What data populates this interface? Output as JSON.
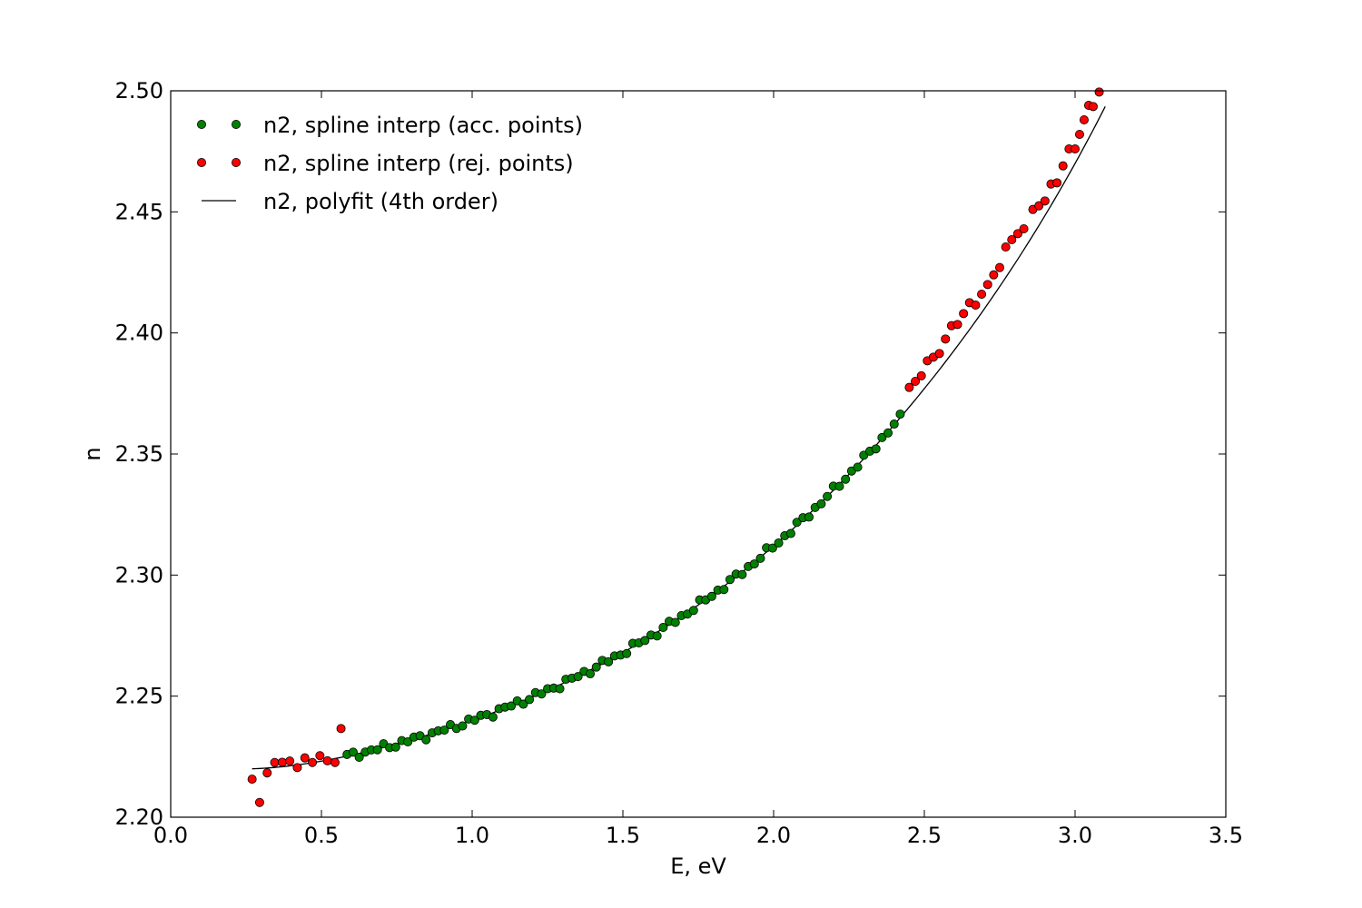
{
  "chart_data": {
    "type": "scatter",
    "title": "",
    "xlabel": "E, eV",
    "ylabel": "n",
    "xlim": [
      0.0,
      3.5
    ],
    "ylim": [
      2.2,
      2.5
    ],
    "xticks": [
      "0.0",
      "0.5",
      "1.0",
      "1.5",
      "2.0",
      "2.5",
      "3.0",
      "3.5"
    ],
    "yticks": [
      "2.20",
      "2.25",
      "2.30",
      "2.35",
      "2.40",
      "2.45",
      "2.50"
    ],
    "grid": false,
    "legend_position": "top-left",
    "series": [
      {
        "name": "n2, spline interp (acc. points)",
        "kind": "markers",
        "color": "#008000",
        "x_range": [
          0.585,
          2.42
        ],
        "n_points": 92,
        "trend": "4th-order fit with small jitter"
      },
      {
        "name": "n2, spline interp (rej. points)",
        "kind": "markers",
        "color": "#ff0000",
        "points": [
          [
            0.27,
            2.2157
          ],
          [
            0.295,
            2.2061
          ],
          [
            0.32,
            2.2183
          ],
          [
            0.345,
            2.2226
          ],
          [
            0.37,
            2.2227
          ],
          [
            0.395,
            2.2232
          ],
          [
            0.42,
            2.2205
          ],
          [
            0.445,
            2.2245
          ],
          [
            0.47,
            2.2226
          ],
          [
            0.495,
            2.2254
          ],
          [
            0.52,
            2.2233
          ],
          [
            0.545,
            2.2226
          ],
          [
            0.565,
            2.2366
          ],
          [
            2.45,
            2.3775
          ],
          [
            2.47,
            2.38
          ],
          [
            2.49,
            2.3823
          ],
          [
            2.51,
            2.3885
          ],
          [
            2.53,
            2.39
          ],
          [
            2.55,
            2.3915
          ],
          [
            2.57,
            2.3975
          ],
          [
            2.59,
            2.403
          ],
          [
            2.61,
            2.4035
          ],
          [
            2.63,
            2.408
          ],
          [
            2.65,
            2.4125
          ],
          [
            2.67,
            2.4115
          ],
          [
            2.69,
            2.416
          ],
          [
            2.71,
            2.42
          ],
          [
            2.73,
            2.424
          ],
          [
            2.75,
            2.427
          ],
          [
            2.77,
            2.4355
          ],
          [
            2.79,
            2.4385
          ],
          [
            2.81,
            2.441
          ],
          [
            2.83,
            2.443
          ],
          [
            2.86,
            2.451
          ],
          [
            2.88,
            2.4525
          ],
          [
            2.9,
            2.4545
          ],
          [
            2.92,
            2.4615
          ],
          [
            2.94,
            2.462
          ],
          [
            2.96,
            2.469
          ],
          [
            2.98,
            2.476
          ],
          [
            3.0,
            2.476
          ],
          [
            3.015,
            2.482
          ],
          [
            3.03,
            2.488
          ],
          [
            3.045,
            2.494
          ],
          [
            3.06,
            2.4935
          ],
          [
            3.08,
            2.4995
          ]
        ]
      },
      {
        "name": "n2, polyfit (4th order)",
        "kind": "line",
        "color": "#000000",
        "x_range": [
          0.27,
          3.1
        ],
        "anchor_points": [
          [
            0.27,
            2.22
          ],
          [
            1.0,
            2.24
          ],
          [
            1.5,
            2.268
          ],
          [
            2.0,
            2.312
          ],
          [
            2.5,
            2.377
          ],
          [
            3.0,
            2.47
          ],
          [
            3.1,
            2.4935
          ]
        ]
      }
    ]
  }
}
